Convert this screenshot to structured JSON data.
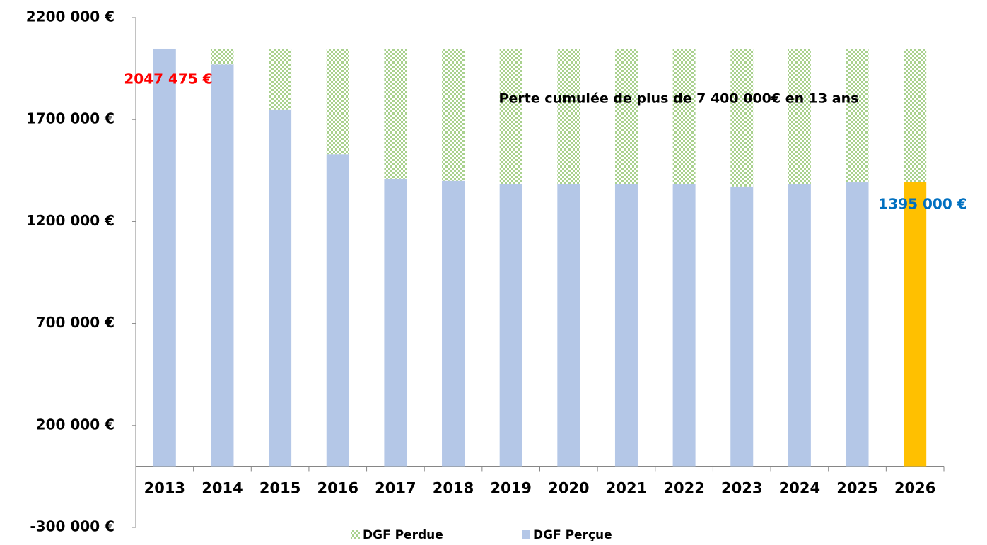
{
  "chart_data": {
    "type": "stacked_bar",
    "categories": [
      "2013",
      "2014",
      "2015",
      "2016",
      "2017",
      "2018",
      "2019",
      "2020",
      "2021",
      "2022",
      "2023",
      "2024",
      "2025",
      "2026"
    ],
    "series": [
      {
        "name": "DGF Perçue",
        "color": "#b4c7e7",
        "colors": [
          "#b4c7e7",
          "#b4c7e7",
          "#b4c7e7",
          "#b4c7e7",
          "#b4c7e7",
          "#b4c7e7",
          "#b4c7e7",
          "#b4c7e7",
          "#b4c7e7",
          "#b4c7e7",
          "#b4c7e7",
          "#b4c7e7",
          "#b4c7e7",
          "#ffc000"
        ],
        "values": [
          2047475,
          1970000,
          1750000,
          1530000,
          1410000,
          1400000,
          1385000,
          1382000,
          1382000,
          1382000,
          1372000,
          1382000,
          1392000,
          1395000
        ]
      },
      {
        "name": "DGF Perdue",
        "color": "#a9d18e",
        "pattern": "checker",
        "values": [
          0,
          77475,
          297475,
          517475,
          637475,
          647475,
          662475,
          665475,
          665475,
          665475,
          675475,
          665475,
          655475,
          652475
        ]
      }
    ],
    "ylim": [
      -300000,
      2200000
    ],
    "yticks": [
      {
        "value": -300000,
        "label": "-300 000 €"
      },
      {
        "value": 200000,
        "label": "200 000 €"
      },
      {
        "value": 700000,
        "label": "700 000 €"
      },
      {
        "value": 1200000,
        "label": "1200 000 €"
      },
      {
        "value": 1700000,
        "label": "1700 000 €"
      },
      {
        "value": 2200000,
        "label": "2200 000 €"
      }
    ],
    "annotations": [
      {
        "text": "2047 475 €",
        "color": "#ff0000"
      },
      {
        "text": "Perte cumulée de plus de 7 400 000€ en 13 ans",
        "color": "#000000"
      },
      {
        "text": "1395 000 €",
        "color": "#0070c0"
      }
    ],
    "legend": "bottom"
  }
}
